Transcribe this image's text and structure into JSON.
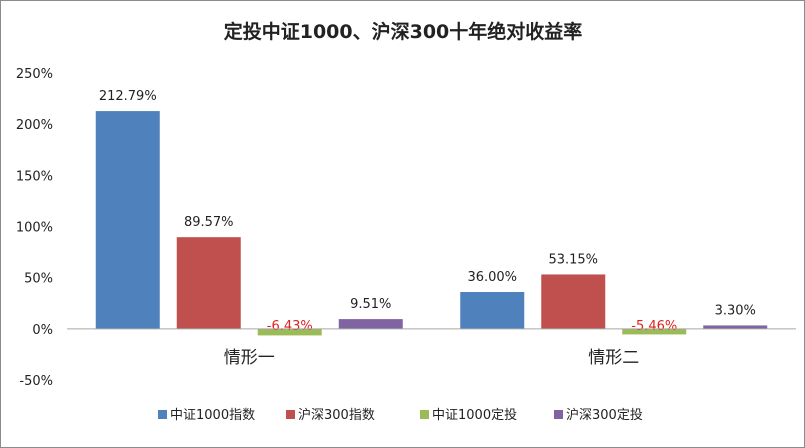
{
  "chart_data": {
    "type": "bar",
    "title": "定投中证1000、沪深300十年绝对收益率",
    "categories": [
      "情形一",
      "情形二"
    ],
    "series": [
      {
        "name": "中证1000指数",
        "color": "#4f81bd",
        "values": [
          212.79,
          36.0
        ],
        "labels": [
          "212.79%",
          "36.00%"
        ]
      },
      {
        "name": "沪深300指数",
        "color": "#c0504d",
        "values": [
          89.57,
          53.15
        ],
        "labels": [
          "89.57%",
          "53.15%"
        ]
      },
      {
        "name": "中证1000定投",
        "color": "#9bbb59",
        "values": [
          -6.43,
          -5.46
        ],
        "labels": [
          "-6.43%",
          "-5.46%"
        ]
      },
      {
        "name": "沪深300定投",
        "color": "#8064a2",
        "values": [
          9.51,
          3.3
        ],
        "labels": [
          "9.51%",
          "3.30%"
        ]
      }
    ],
    "negative_label_color": "#e02020",
    "ylim": [
      -50,
      250
    ],
    "yticks": [
      250,
      200,
      150,
      100,
      50,
      0,
      -50
    ],
    "ytick_labels": [
      "250%",
      "200%",
      "150%",
      "100%",
      "50%",
      "0%",
      "-50%"
    ],
    "xlabel": "",
    "ylabel": "",
    "grid": false,
    "legend": "bottom"
  }
}
